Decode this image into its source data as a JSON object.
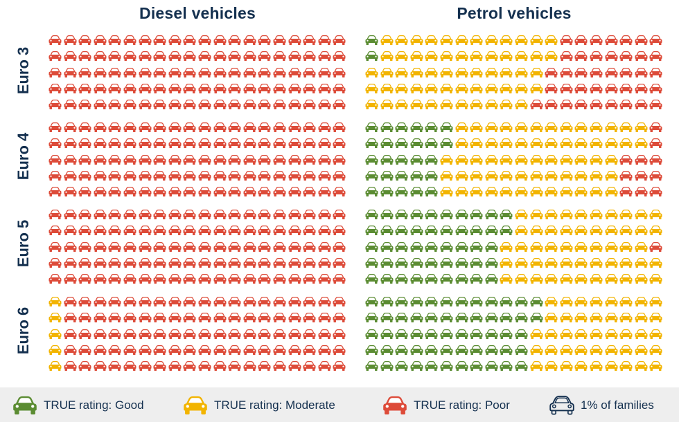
{
  "titles": {
    "diesel": "Diesel vehicles",
    "petrol": "Petrol vehicles"
  },
  "rows": [
    "Euro 3",
    "Euro 4",
    "Euro 5",
    "Euro 6"
  ],
  "colors": {
    "good": "#5b8c32",
    "moderate": "#f2b400",
    "poor": "#dd4b39",
    "outline": "#14304f"
  },
  "legend": {
    "good": "TRUE rating: Good",
    "moderate": "TRUE rating: Moderate",
    "poor": "TRUE rating: Poor",
    "unit": "1% of families"
  },
  "chart_data": {
    "type": "waffle",
    "unit": "1% of families",
    "categories": [
      "Good",
      "Moderate",
      "Poor"
    ],
    "groups": [
      "Diesel vehicles",
      "Petrol vehicles"
    ],
    "series": [
      {
        "group": "Diesel vehicles",
        "row": "Euro 3",
        "good": 0,
        "moderate": 0,
        "poor": 100
      },
      {
        "group": "Diesel vehicles",
        "row": "Euro 4",
        "good": 0,
        "moderate": 0,
        "poor": 100
      },
      {
        "group": "Diesel vehicles",
        "row": "Euro 5",
        "good": 0,
        "moderate": 0,
        "poor": 100
      },
      {
        "group": "Diesel vehicles",
        "row": "Euro 6",
        "good": 0,
        "moderate": 5,
        "poor": 95
      },
      {
        "group": "Petrol vehicles",
        "row": "Euro 3",
        "good": 2,
        "moderate": 59,
        "poor": 39
      },
      {
        "group": "Petrol vehicles",
        "row": "Euro 4",
        "good": 27,
        "moderate": 62,
        "poor": 11
      },
      {
        "group": "Petrol vehicles",
        "row": "Euro 5",
        "good": 47,
        "moderate": 50,
        "poor": 3
      },
      {
        "group": "Petrol vehicles",
        "row": "Euro 6",
        "good": 57,
        "moderate": 43,
        "poor": 0
      }
    ]
  }
}
